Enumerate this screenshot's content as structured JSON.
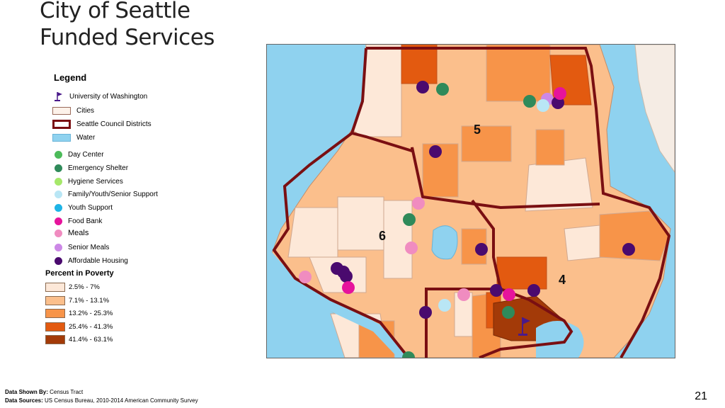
{
  "slide": {
    "title_line1": "City of Seattle",
    "title_line2": "Funded Services",
    "page_number": "21"
  },
  "legend": {
    "title": "Legend",
    "boundaries": [
      {
        "label": "University of Washington",
        "icon": "flag-icon"
      },
      {
        "label": "Cities",
        "icon": "cities-swatch"
      },
      {
        "label": "Seattle Council Districts",
        "icon": "district-swatch"
      },
      {
        "label": "Water",
        "icon": "water-swatch"
      }
    ],
    "services": [
      {
        "label": "Day Center",
        "color": "#4cbb5a"
      },
      {
        "label": "Emergency Shelter",
        "color": "#2f8a5a"
      },
      {
        "label": "Hygiene Services",
        "color": "#a6e86a"
      },
      {
        "label": "Family/Youth/Senior Support",
        "color": "#b9e6f5"
      },
      {
        "label": "Youth Support",
        "color": "#1eb4e6"
      },
      {
        "label": "Food Bank",
        "color": "#e6139c"
      },
      {
        "label": "Meals",
        "color": "#f08cc0"
      },
      {
        "label": "Senior Meals",
        "color": "#cc88e6"
      },
      {
        "label": "Affordable Housing",
        "color": "#4a0a6e"
      }
    ],
    "poverty_title": "Percent in Poverty",
    "poverty_classes": [
      {
        "label": "2.5% - 7%",
        "color": "#fde8d8"
      },
      {
        "label": "7.1% - 13.1%",
        "color": "#fbbf8c"
      },
      {
        "label": "13.2% - 25.3%",
        "color": "#f79449"
      },
      {
        "label": "25.4% - 41.3%",
        "color": "#e35a10"
      },
      {
        "label": "41.4% - 63.1%",
        "color": "#a33a08"
      }
    ]
  },
  "map": {
    "district_labels": [
      "5",
      "6",
      "4"
    ],
    "colors": {
      "water": "#8fd2ef",
      "district_line": "#7a0f12",
      "tract_line": "#d0a890",
      "land_other": "#f5ece4"
    }
  },
  "footer": {
    "shown_by_label": "Data Shown By:",
    "shown_by_value": "Census Tract",
    "sources_label": "Data Sources:",
    "sources_value": "US Census Bureau, 2010-2014 American Community Survey"
  }
}
